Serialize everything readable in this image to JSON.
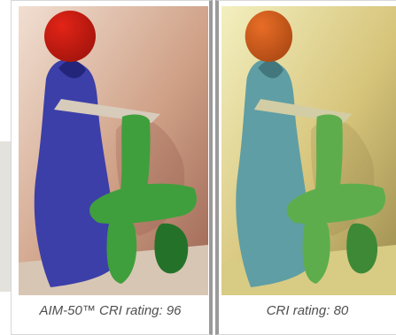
{
  "panels": [
    {
      "caption": "AIM-50™ CRI rating: 96",
      "colors": {
        "wall_light": "#f1dfd2",
        "wall_mid": "#cfa086",
        "wall_dark": "#9b6352",
        "floor": "#d8c6b4",
        "ball": "#e32417",
        "ball_shadow": "#a9160e",
        "figure": "#3c3fa8",
        "figure_dark": "#23257a",
        "table": "#3f9f3c",
        "table_dark": "#24722a",
        "tray": "#d7cbbb"
      }
    },
    {
      "caption": "CRI rating: 80",
      "colors": {
        "wall_light": "#f3efbf",
        "wall_mid": "#d6c47a",
        "wall_dark": "#9a8a4e",
        "floor": "#d8cb84",
        "ball": "#e86d26",
        "ball_shadow": "#b34d16",
        "figure": "#5f9ea4",
        "figure_dark": "#41777d",
        "table": "#5ead4d",
        "table_dark": "#3d8936",
        "tray": "#d2cda4"
      }
    }
  ]
}
